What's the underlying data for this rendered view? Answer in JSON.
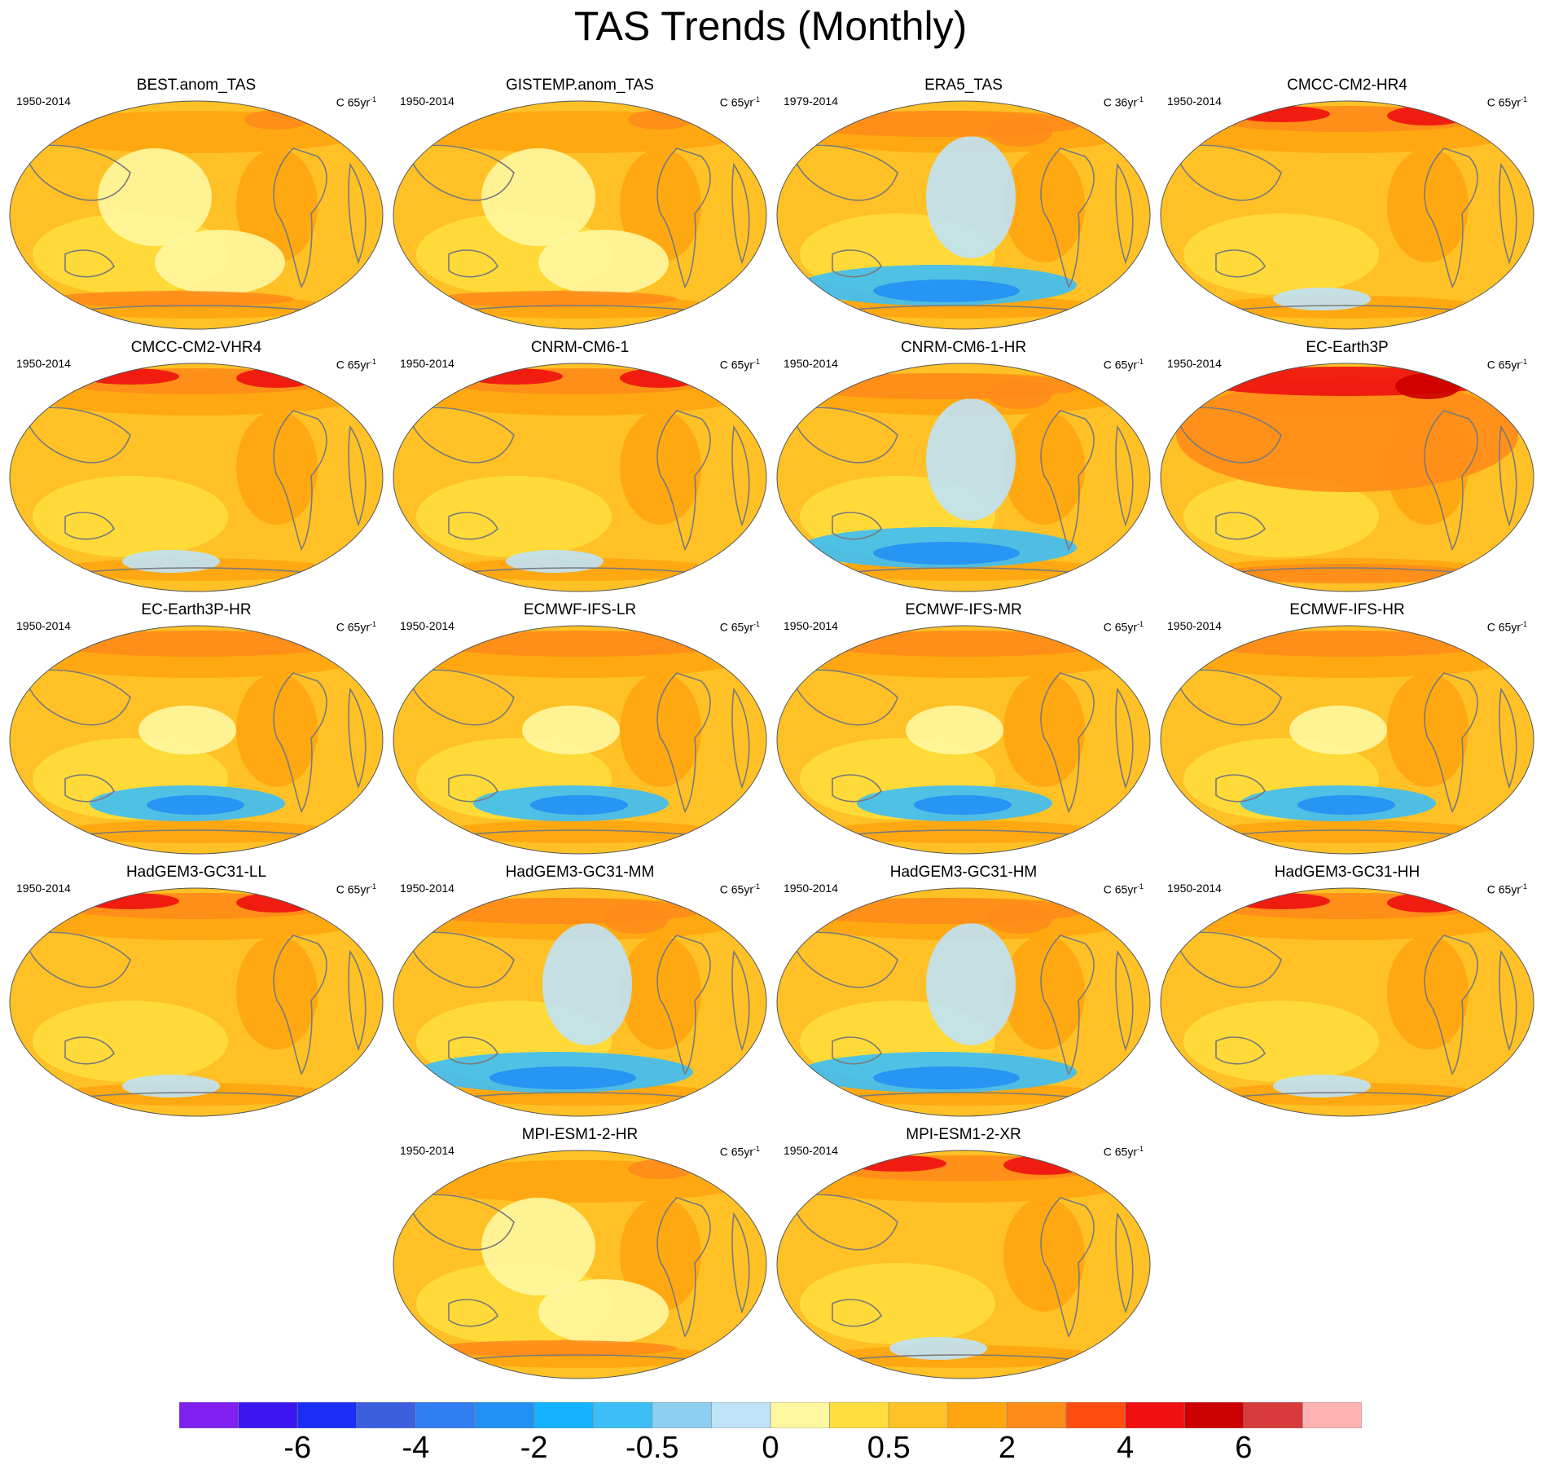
{
  "title": "TAS Trends (Monthly)",
  "panels": [
    {
      "name": "BEST.anom_TAS",
      "period": "1950-2014",
      "unit_base": "C 65yr",
      "unit_exp": "-1",
      "pattern": "obs"
    },
    {
      "name": "GISTEMP.anom_TAS",
      "period": "1950-2014",
      "unit_base": "C 65yr",
      "unit_exp": "-1",
      "pattern": "obs"
    },
    {
      "name": "ERA5_TAS",
      "period": "1979-2014",
      "unit_base": "C 36yr",
      "unit_exp": "-1",
      "pattern": "cool-south"
    },
    {
      "name": "CMCC-CM2-HR4",
      "period": "1950-2014",
      "unit_base": "C 65yr",
      "unit_exp": "-1",
      "pattern": "warm-arctic"
    },
    {
      "name": "CMCC-CM2-VHR4",
      "period": "1950-2014",
      "unit_base": "C 65yr",
      "unit_exp": "-1",
      "pattern": "warm-arctic"
    },
    {
      "name": "CNRM-CM6-1",
      "period": "1950-2014",
      "unit_base": "C 65yr",
      "unit_exp": "-1",
      "pattern": "warm-arctic"
    },
    {
      "name": "CNRM-CM6-1-HR",
      "period": "1950-2014",
      "unit_base": "C 65yr",
      "unit_exp": "-1",
      "pattern": "cool-south"
    },
    {
      "name": "EC-Earth3P",
      "period": "1950-2014",
      "unit_base": "C 65yr",
      "unit_exp": "-1",
      "pattern": "hot"
    },
    {
      "name": "EC-Earth3P-HR",
      "period": "1950-2014",
      "unit_base": "C 65yr",
      "unit_exp": "-1",
      "pattern": "blue-spot"
    },
    {
      "name": "ECMWF-IFS-LR",
      "period": "1950-2014",
      "unit_base": "C 65yr",
      "unit_exp": "-1",
      "pattern": "blue-spot"
    },
    {
      "name": "ECMWF-IFS-MR",
      "period": "1950-2014",
      "unit_base": "C 65yr",
      "unit_exp": "-1",
      "pattern": "blue-spot"
    },
    {
      "name": "ECMWF-IFS-HR",
      "period": "1950-2014",
      "unit_base": "C 65yr",
      "unit_exp": "-1",
      "pattern": "blue-spot"
    },
    {
      "name": "HadGEM3-GC31-LL",
      "period": "1950-2014",
      "unit_base": "C 65yr",
      "unit_exp": "-1",
      "pattern": "warm-arctic"
    },
    {
      "name": "HadGEM3-GC31-MM",
      "period": "1950-2014",
      "unit_base": "C 65yr",
      "unit_exp": "-1",
      "pattern": "cool-south"
    },
    {
      "name": "HadGEM3-GC31-HM",
      "period": "1950-2014",
      "unit_base": "C 65yr",
      "unit_exp": "-1",
      "pattern": "cool-south"
    },
    {
      "name": "HadGEM3-GC31-HH",
      "period": "1950-2014",
      "unit_base": "C 65yr",
      "unit_exp": "-1",
      "pattern": "warm-arctic"
    },
    {
      "name": "MPI-ESM1-2-HR",
      "period": "1950-2014",
      "unit_base": "C 65yr",
      "unit_exp": "-1",
      "pattern": "obs"
    },
    {
      "name": "MPI-ESM1-2-XR",
      "period": "1950-2014",
      "unit_base": "C 65yr",
      "unit_exp": "-1",
      "pattern": "warm-arctic"
    }
  ],
  "colorbar": {
    "colors": [
      "#7f1ff0",
      "#3b16f0",
      "#1a2ef5",
      "#3c5fe0",
      "#2f7df0",
      "#2190f5",
      "#14b2ff",
      "#3cbef7",
      "#8ecef0",
      "#bfe2f7",
      "#fff7a0",
      "#ffdd3c",
      "#ffc125",
      "#ffa510",
      "#ff8c1a",
      "#ff4d10",
      "#f01010",
      "#cc0000",
      "#d63a3a",
      "#ffb3b3"
    ],
    "labels": [
      "-6",
      "-4",
      "-2",
      "-0.5",
      "0",
      "0.5",
      "2",
      "4",
      "6"
    ]
  }
}
